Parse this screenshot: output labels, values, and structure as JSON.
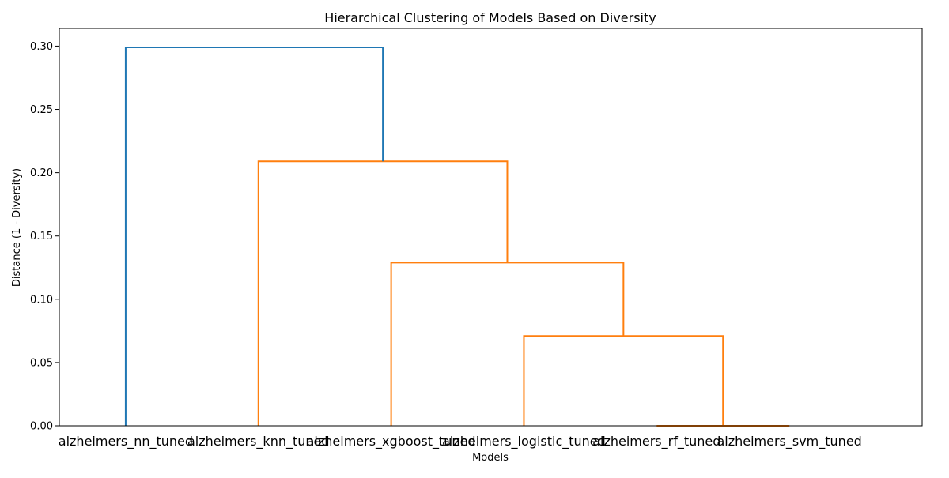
{
  "chart_data": {
    "type": "dendrogram",
    "title": "Hierarchical Clustering of Models Based on Diversity",
    "xlabel": "Models",
    "ylabel": "Distance (1 - Diversity)",
    "ylim": [
      0,
      0.314
    ],
    "yticks": [
      0.0,
      0.05,
      0.1,
      0.15,
      0.2,
      0.25,
      0.3
    ],
    "ytick_labels": [
      "0.00",
      "0.05",
      "0.10",
      "0.15",
      "0.20",
      "0.25",
      "0.30"
    ],
    "grid": false,
    "leaves": [
      "alzheimers_nn_tuned",
      "alzheimers_knn_tuned",
      "alzheimers_xgboost_tuned",
      "alzheimers_logistic_tuned",
      "alzheimers_rf_tuned",
      "alzheimers_svm_tuned"
    ],
    "merges": [
      {
        "left": "alzheimers_rf_tuned",
        "right": "alzheimers_svm_tuned",
        "distance": 0.0,
        "color": "#ff7f0e"
      },
      {
        "left": "alzheimers_logistic_tuned",
        "right": "alzheimers_rf_tuned + alzheimers_svm_tuned",
        "distance": 0.071,
        "color": "#ff7f0e"
      },
      {
        "left": "alzheimers_xgboost_tuned",
        "right": "alzheimers_logistic_tuned + alzheimers_rf_tuned + alzheimers_svm_tuned",
        "distance": 0.129,
        "color": "#ff7f0e"
      },
      {
        "left": "alzheimers_knn_tuned",
        "right": "alzheimers_xgboost_tuned + alzheimers_logistic_tuned + alzheimers_rf_tuned + alzheimers_svm_tuned",
        "distance": 0.209,
        "color": "#ff7f0e"
      },
      {
        "left": "alzheimers_nn_tuned",
        "right": "alzheimers_knn_tuned + alzheimers_xgboost_tuned + alzheimers_logistic_tuned + alzheimers_rf_tuned + alzheimers_svm_tuned",
        "distance": 0.299,
        "color": "#1f77b4"
      }
    ],
    "colors": {
      "above_threshold": "#1f77b4",
      "cluster": "#ff7f0e"
    }
  }
}
